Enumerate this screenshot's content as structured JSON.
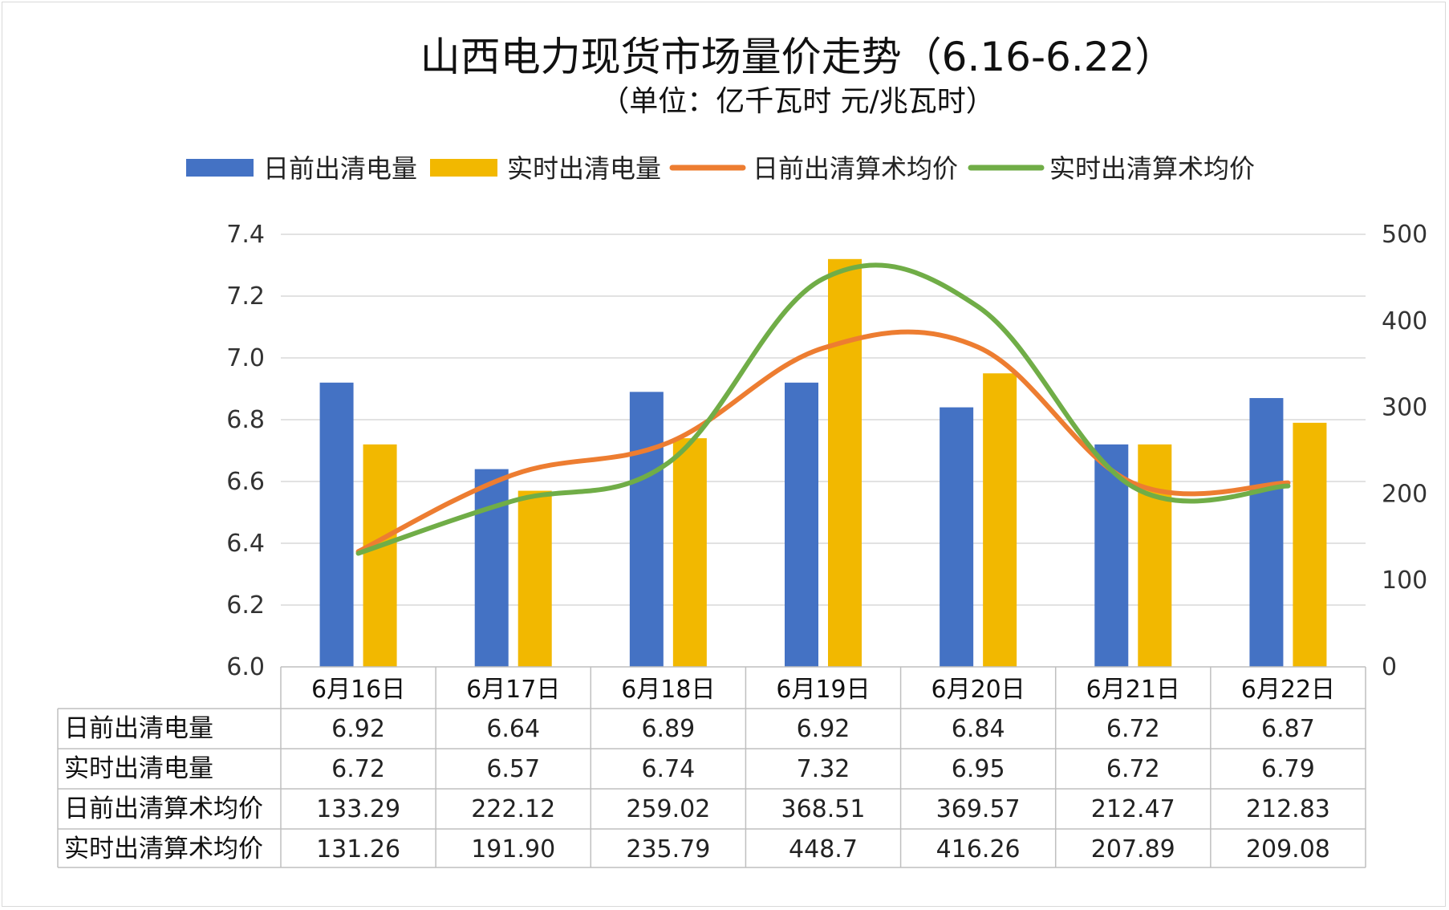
{
  "chart_data": {
    "type": "bar",
    "title": "山西电力现货市场量价走势（6.16-6.22）",
    "subtitle": "（单位：亿千瓦时 元/兆瓦时）",
    "categories": [
      "6月16日",
      "6月17日",
      "6月18日",
      "6月19日",
      "6月20日",
      "6月21日",
      "6月22日"
    ],
    "series": [
      {
        "name": "日前出清电量",
        "type": "bar",
        "axis": "left",
        "color": "#4472C4",
        "values": [
          6.92,
          6.64,
          6.89,
          6.92,
          6.84,
          6.72,
          6.87
        ],
        "labels": [
          "6.92",
          "6.64",
          "6.89",
          "6.92",
          "6.84",
          "6.72",
          "6.87"
        ]
      },
      {
        "name": "实时出清电量",
        "type": "bar",
        "axis": "left",
        "color": "#F2B800",
        "values": [
          6.72,
          6.57,
          6.74,
          7.32,
          6.95,
          6.72,
          6.79
        ],
        "labels": [
          "6.72",
          "6.57",
          "6.74",
          "7.32",
          "6.95",
          "6.72",
          "6.79"
        ]
      },
      {
        "name": "日前出清算术均价",
        "type": "line",
        "axis": "right",
        "color": "#ED7D31",
        "values": [
          133.29,
          222.12,
          259.02,
          368.51,
          369.57,
          212.47,
          212.83
        ],
        "labels": [
          "133.29",
          "222.12",
          "259.02",
          "368.51",
          "369.57",
          "212.47",
          "212.83"
        ]
      },
      {
        "name": "实时出清算术均价",
        "type": "line",
        "axis": "right",
        "color": "#70AD47",
        "values": [
          131.26,
          191.9,
          235.79,
          448.7,
          416.26,
          207.89,
          209.08
        ],
        "labels": [
          "131.26",
          "191.90",
          "235.79",
          "448.7",
          "416.26",
          "207.89",
          "209.08"
        ]
      }
    ],
    "y_left": {
      "min": 6.0,
      "max": 7.4,
      "ticks": [
        "6.0",
        "6.2",
        "6.4",
        "6.6",
        "6.8",
        "7.0",
        "7.2",
        "7.4"
      ]
    },
    "y_right": {
      "min": 0,
      "max": 500,
      "ticks": [
        "0",
        "100",
        "200",
        "300",
        "400",
        "500"
      ]
    },
    "grid": true,
    "legend": "top",
    "data_table": true
  }
}
